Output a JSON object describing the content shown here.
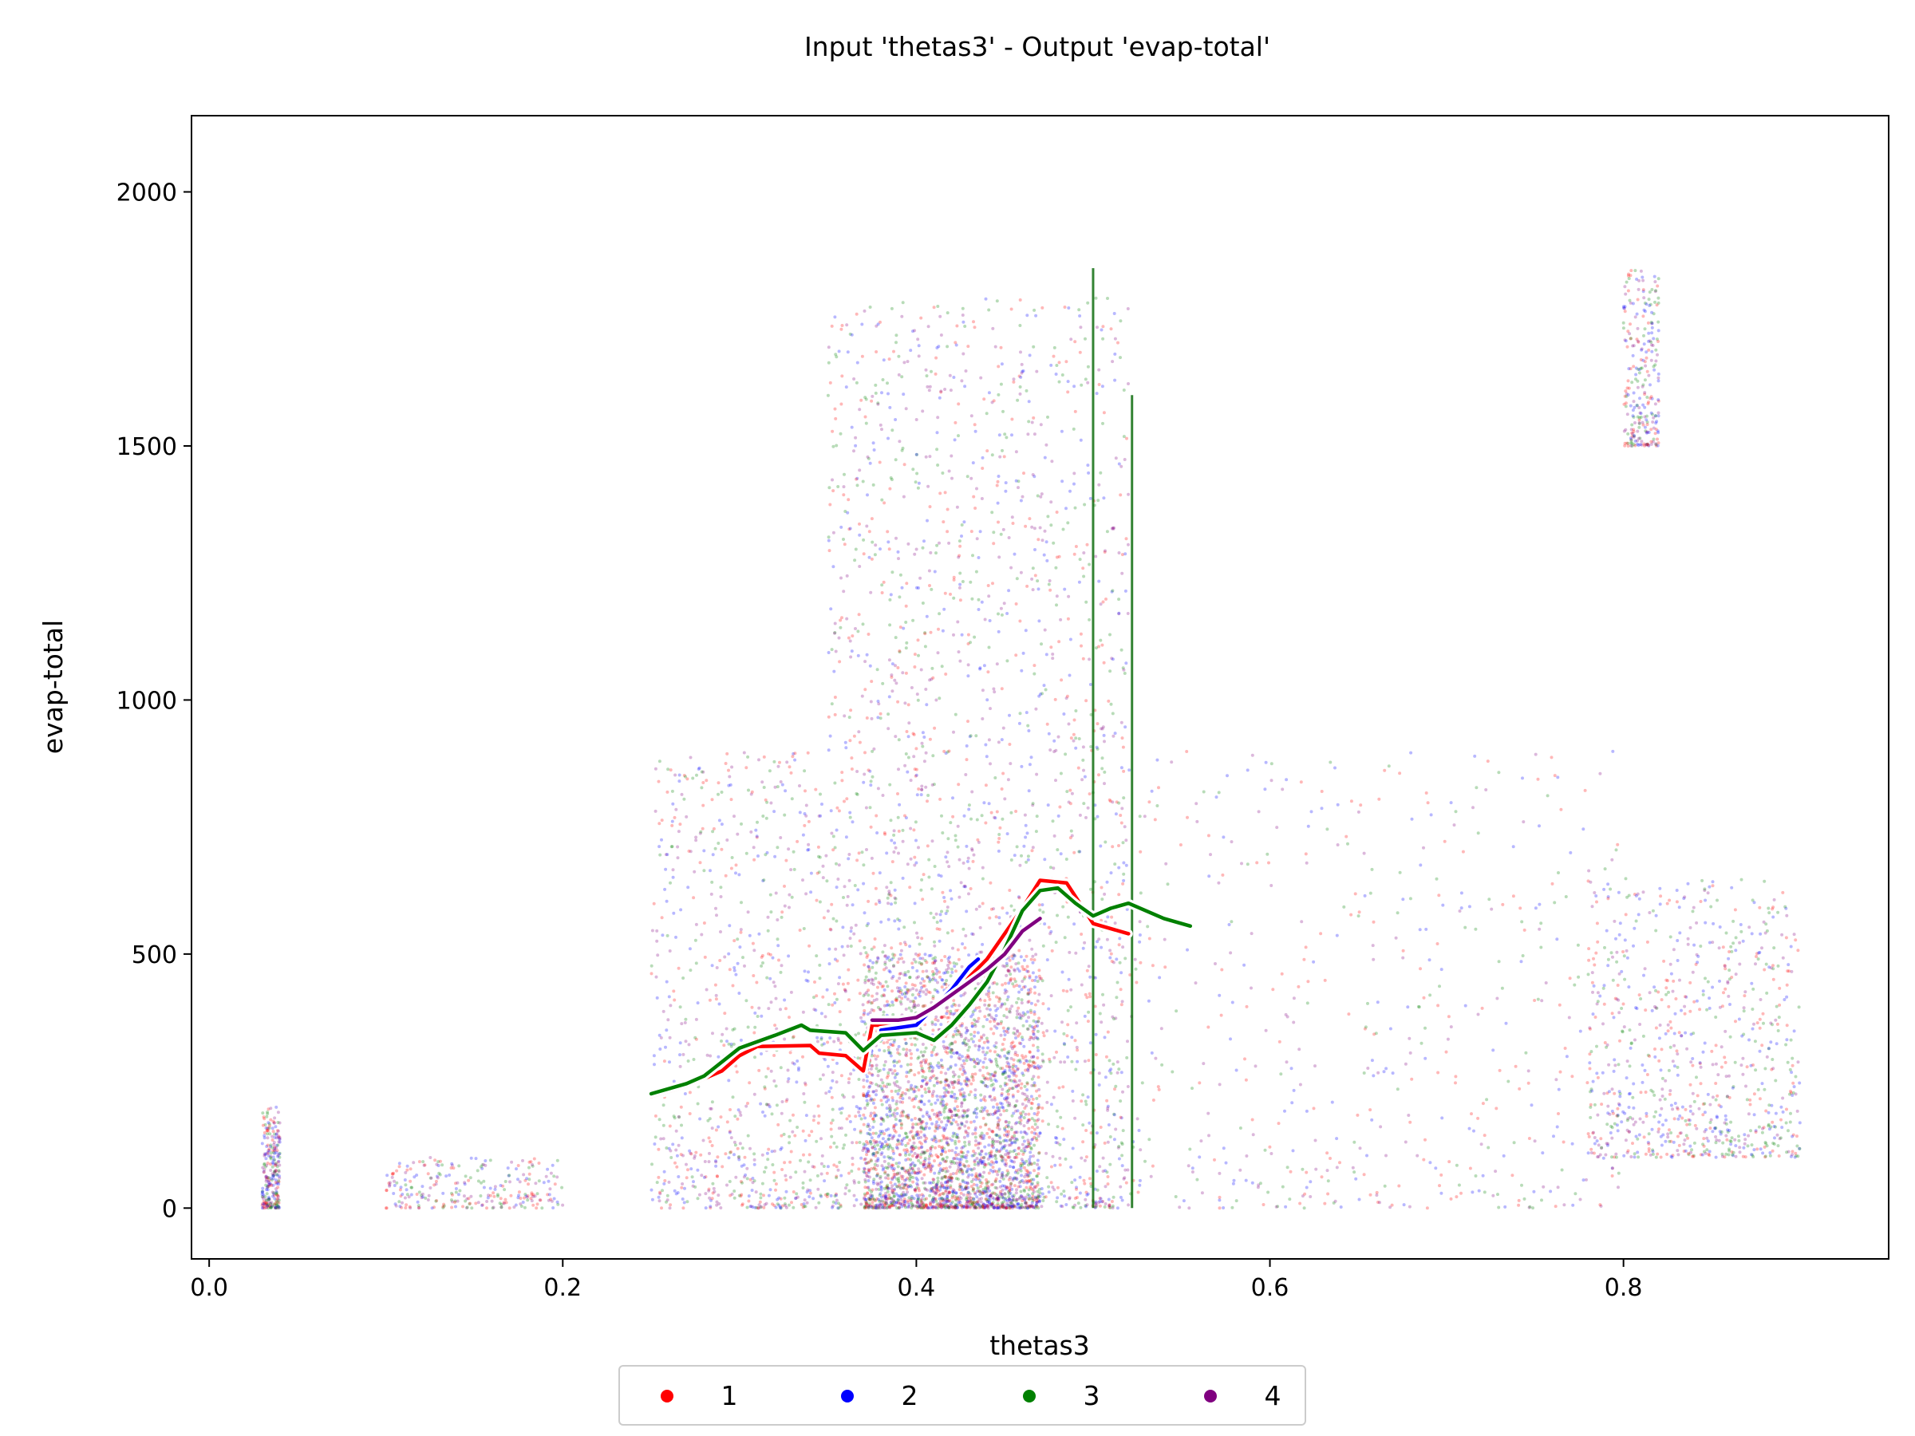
{
  "chart_data": {
    "type": "scatter",
    "title": "Input 'thetas3' - Output 'evap-total'",
    "xlabel": "thetas3",
    "ylabel": "evap-total",
    "xlim": [
      -0.01,
      0.95
    ],
    "ylim": [
      -100,
      2150
    ],
    "x_ticks": [
      0.0,
      0.2,
      0.4,
      0.6,
      0.8
    ],
    "x_tick_labels": [
      "0.0",
      "0.2",
      "0.4",
      "0.6",
      "0.8"
    ],
    "y_ticks": [
      0,
      500,
      1000,
      1500,
      2000
    ],
    "y_tick_labels": [
      "0",
      "500",
      "1000",
      "1500",
      "2000"
    ],
    "grid": false,
    "legend_position": "bottom-center",
    "legend": [
      "1",
      "2",
      "3",
      "4"
    ],
    "colors": {
      "1": "#ff0000",
      "2": "#0000ff",
      "3": "#008000",
      "4": "#800080"
    },
    "series": [
      {
        "name": "1",
        "color": "#ff0000",
        "trend": [
          [
            0.25,
            220
          ],
          [
            0.27,
            240
          ],
          [
            0.29,
            270
          ],
          [
            0.3,
            300
          ],
          [
            0.31,
            318
          ],
          [
            0.34,
            320
          ],
          [
            0.345,
            305
          ],
          [
            0.36,
            300
          ],
          [
            0.37,
            270
          ],
          [
            0.375,
            360
          ],
          [
            0.4,
            360
          ],
          [
            0.42,
            420
          ],
          [
            0.44,
            490
          ],
          [
            0.46,
            590
          ],
          [
            0.47,
            645
          ],
          [
            0.485,
            640
          ],
          [
            0.5,
            560
          ],
          [
            0.52,
            540
          ]
        ]
      },
      {
        "name": "2",
        "color": "#0000ff",
        "trend": [
          [
            0.38,
            350
          ],
          [
            0.4,
            360
          ],
          [
            0.41,
            395
          ],
          [
            0.42,
            430
          ],
          [
            0.43,
            475
          ],
          [
            0.435,
            490
          ]
        ]
      },
      {
        "name": "3",
        "color": "#008000",
        "trend": [
          [
            0.25,
            225
          ],
          [
            0.27,
            245
          ],
          [
            0.28,
            260
          ],
          [
            0.3,
            315
          ],
          [
            0.32,
            340
          ],
          [
            0.335,
            360
          ],
          [
            0.34,
            350
          ],
          [
            0.36,
            345
          ],
          [
            0.37,
            310
          ],
          [
            0.38,
            340
          ],
          [
            0.4,
            345
          ],
          [
            0.41,
            330
          ],
          [
            0.42,
            360
          ],
          [
            0.43,
            400
          ],
          [
            0.44,
            445
          ],
          [
            0.45,
            510
          ],
          [
            0.46,
            585
          ],
          [
            0.47,
            625
          ],
          [
            0.48,
            630
          ],
          [
            0.49,
            600
          ],
          [
            0.5,
            575
          ],
          [
            0.51,
            590
          ],
          [
            0.52,
            600
          ],
          [
            0.54,
            570
          ],
          [
            0.555,
            555
          ]
        ]
      },
      {
        "name": "4",
        "color": "#800080",
        "trend": [
          [
            0.375,
            370
          ],
          [
            0.39,
            370
          ],
          [
            0.4,
            375
          ],
          [
            0.41,
            395
          ],
          [
            0.43,
            445
          ],
          [
            0.44,
            470
          ],
          [
            0.45,
            500
          ],
          [
            0.46,
            545
          ],
          [
            0.47,
            570
          ]
        ]
      }
    ],
    "scatter_note_density": [
      {
        "x_range": [
          0.03,
          0.04
        ],
        "y_range": [
          0,
          200
        ],
        "weight": 1
      },
      {
        "x_range": [
          0.1,
          0.2
        ],
        "y_range": [
          0,
          100
        ],
        "weight": 1
      },
      {
        "x_range": [
          0.25,
          0.35
        ],
        "y_range": [
          0,
          900
        ],
        "weight": 3
      },
      {
        "x_range": [
          0.35,
          0.52
        ],
        "y_range": [
          0,
          1800
        ],
        "weight": 9
      },
      {
        "x_range": [
          0.37,
          0.47
        ],
        "y_range": [
          0,
          500
        ],
        "weight": 10
      },
      {
        "x_range": [
          0.52,
          0.8
        ],
        "y_range": [
          0,
          900
        ],
        "weight": 2
      },
      {
        "x_range": [
          0.78,
          0.9
        ],
        "y_range": [
          100,
          650
        ],
        "weight": 3
      },
      {
        "x_range": [
          0.8,
          0.82
        ],
        "y_range": [
          1500,
          1850
        ],
        "weight": 1
      }
    ]
  }
}
